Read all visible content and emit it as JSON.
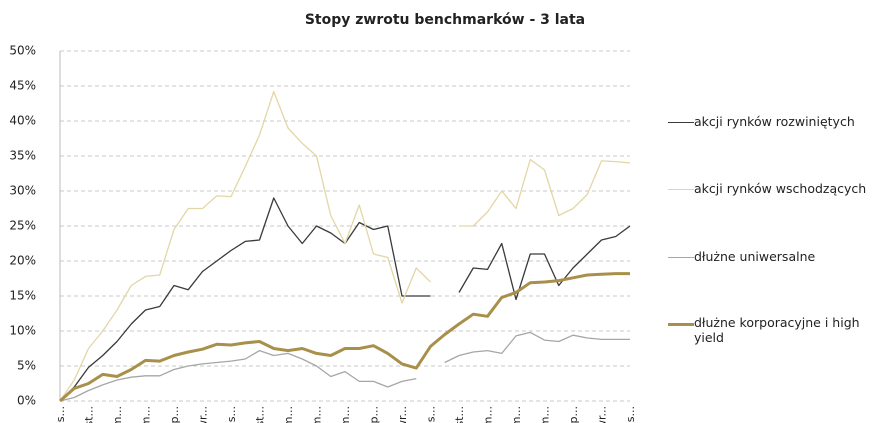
{
  "chart_data": {
    "type": "line",
    "title": "Stopy zwrotu benchmarków - 3 lata",
    "categories": [
      "lis...",
      null,
      "st...",
      null,
      "m...",
      null,
      "m...",
      null,
      "lip...",
      null,
      "wr...",
      null,
      "lis...",
      null,
      "st...",
      null,
      "m...",
      null,
      "m...",
      null,
      "m...",
      null,
      "lip...",
      null,
      "wr...",
      null,
      "lis...",
      null,
      "st...",
      null,
      "m...",
      null,
      "m...",
      null,
      "m...",
      null,
      "lip...",
      null,
      "wr...",
      null,
      "lis..."
    ],
    "ylim": [
      0,
      50
    ],
    "yticks": [
      {
        "value": 0,
        "label": "0%"
      },
      {
        "value": 5,
        "label": "5%"
      },
      {
        "value": 10,
        "label": "10%"
      },
      {
        "value": 15,
        "label": "15%"
      },
      {
        "value": 20,
        "label": "20%"
      },
      {
        "value": 25,
        "label": "25%"
      },
      {
        "value": 30,
        "label": "30%"
      },
      {
        "value": 35,
        "label": "35%"
      },
      {
        "value": 40,
        "label": "40%"
      },
      {
        "value": 45,
        "label": "45%"
      },
      {
        "value": 50,
        "label": "50%"
      }
    ],
    "grid": true,
    "legend": "right",
    "series": [
      {
        "name": "akcji rynków rozwiniętych",
        "color": "#3a3a3a",
        "width": 1.3,
        "values": [
          0,
          2,
          4.8,
          6.5,
          8.5,
          11,
          13,
          13.5,
          16.5,
          15.9,
          18.5,
          20,
          21.5,
          22.8,
          23,
          29,
          25,
          22.5,
          25,
          24,
          22.5,
          25.5,
          24.5,
          25,
          15,
          15,
          15,
          null,
          15.5,
          19,
          18.8,
          22.5,
          14.5,
          21,
          21,
          16.5,
          19,
          21,
          23,
          23.5,
          25
        ]
      },
      {
        "name": "akcji rynków wschodzących",
        "color": "#e3d6a6",
        "width": 1.3,
        "values": [
          0,
          3,
          7.5,
          10,
          13,
          16.5,
          17.8,
          18,
          24.5,
          27.5,
          27.5,
          29.3,
          29.2,
          33.5,
          38,
          44.2,
          39,
          36.8,
          35,
          26.5,
          22.5,
          28,
          21,
          20.5,
          14,
          19,
          17,
          null,
          25,
          25,
          27,
          30,
          27.5,
          34.5,
          33,
          26.5,
          27.5,
          29.5,
          34.3,
          34.2,
          34
        ]
      },
      {
        "name": "dłużne uniwersalne",
        "color": "#a6a6a6",
        "width": 1.3,
        "values": [
          0,
          0.5,
          1.5,
          2.3,
          3,
          3.4,
          3.6,
          3.6,
          4.5,
          5,
          5.3,
          5.5,
          5.7,
          6,
          7.2,
          6.5,
          6.8,
          6,
          5,
          3.5,
          4.2,
          2.8,
          2.8,
          2,
          2.8,
          3.2,
          null,
          5.5,
          6.5,
          7,
          7.2,
          6.8,
          9.3,
          9.8,
          8.7,
          8.5,
          9.4,
          9,
          8.8,
          8.8,
          8.8
        ]
      },
      {
        "name": "dłużne korporacyjne i high yield",
        "color": "#a8904a",
        "width": 3,
        "values": [
          0,
          1.8,
          2.5,
          3.8,
          3.5,
          4.5,
          5.8,
          5.7,
          6.5,
          7,
          7.4,
          8.1,
          8,
          8.3,
          8.5,
          7.5,
          7.2,
          7.5,
          6.8,
          6.5,
          7.5,
          7.5,
          7.9,
          6.8,
          5.3,
          4.7,
          7.8,
          9.5,
          11,
          12.4,
          12.1,
          14.8,
          15.5,
          16.9,
          17,
          17.2,
          17.6,
          18,
          18.1,
          18.2,
          18.2
        ]
      }
    ]
  }
}
